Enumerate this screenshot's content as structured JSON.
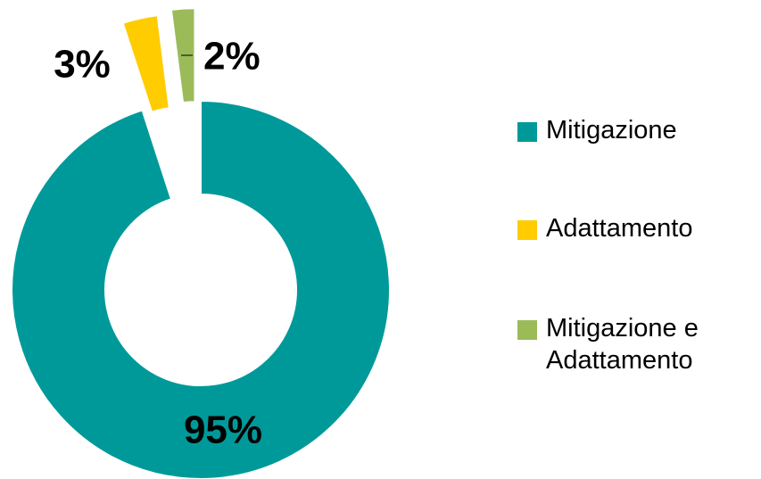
{
  "chart_data": {
    "type": "donut",
    "categories": [
      "Mitigazione",
      "Adattamento",
      "Mitigazione e Adattamento"
    ],
    "values": [
      95,
      3,
      2
    ],
    "value_labels": [
      "95%",
      "3%",
      "2%"
    ],
    "colors": [
      "#009999",
      "#ffcc00",
      "#9bbb59"
    ],
    "legend": "right"
  }
}
